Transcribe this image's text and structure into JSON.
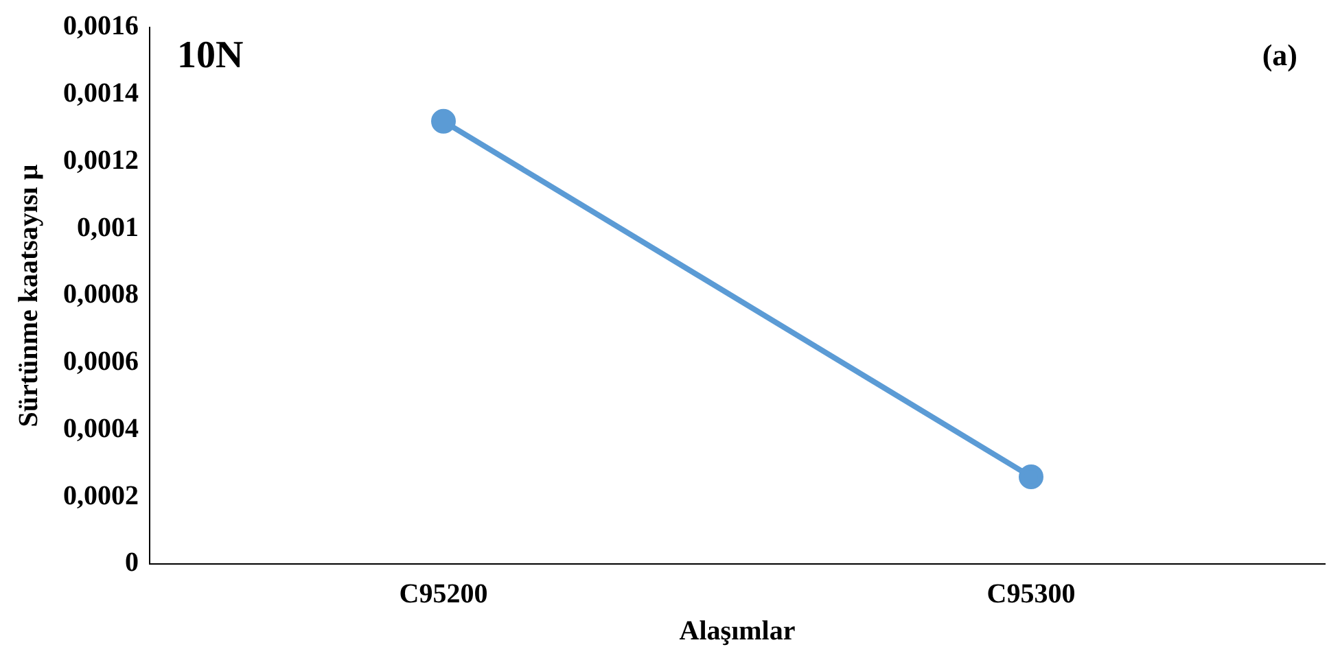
{
  "chart_data": {
    "type": "line",
    "xlabel": "Alaşımlar",
    "ylabel": "Sürtünme kaatsayısı μ",
    "categories": [
      "C95200",
      "C95300"
    ],
    "series": [
      {
        "color": "#5b9bd5",
        "values": [
          0.00132,
          0.00026
        ]
      }
    ],
    "ylim": [
      0,
      0.0016
    ],
    "yticks": [
      0,
      {
        "value": 0.0002,
        "label": "0,0002"
      },
      {
        "value": 0.0004,
        "label": "0,0004"
      },
      {
        "value": 0.0006,
        "label": "0,0006"
      },
      {
        "value": 0.0008,
        "label": "0,0008"
      },
      {
        "value": 0.001,
        "label": "0,001"
      },
      {
        "value": 0.0012,
        "label": "0,0012"
      },
      {
        "value": 0.0014,
        "label": "0,0014"
      },
      {
        "value": 0.0016,
        "label": "0,0016"
      }
    ],
    "marker": "circle",
    "line_style": "solid",
    "grid": false,
    "legend": false,
    "annotations": [
      "10N",
      "(a)"
    ]
  }
}
